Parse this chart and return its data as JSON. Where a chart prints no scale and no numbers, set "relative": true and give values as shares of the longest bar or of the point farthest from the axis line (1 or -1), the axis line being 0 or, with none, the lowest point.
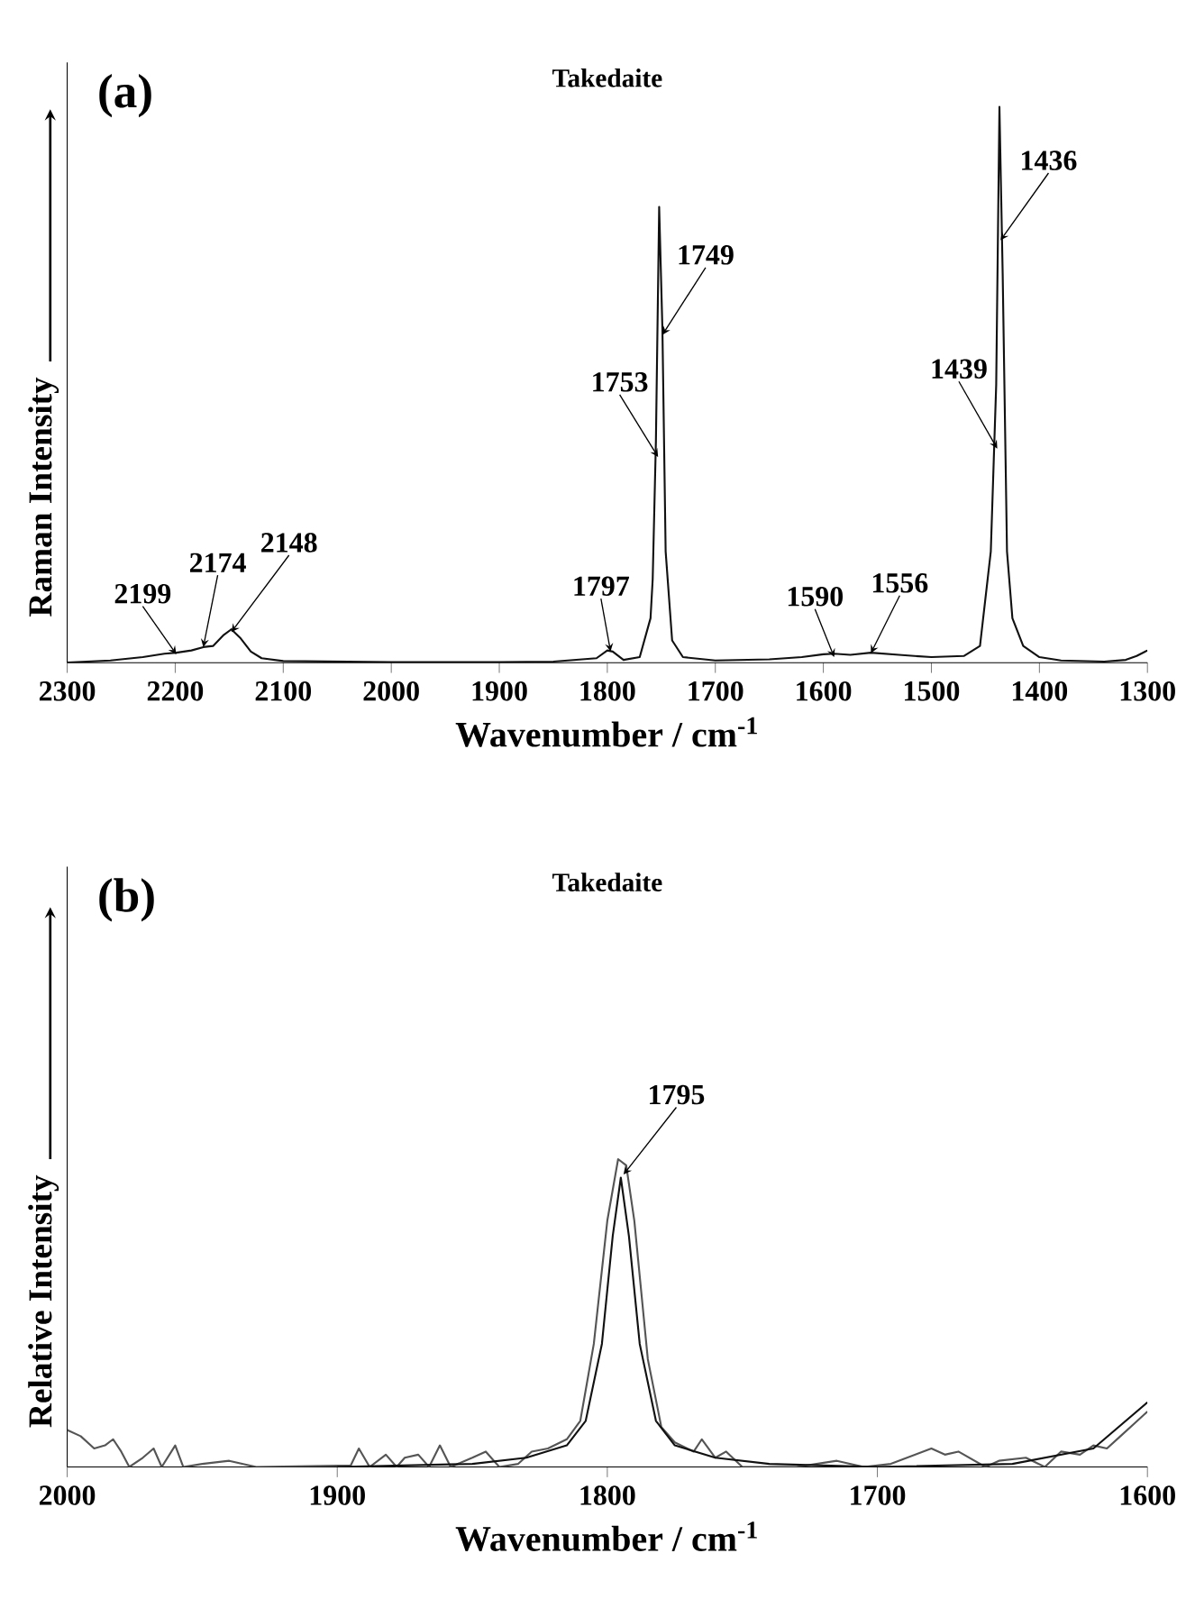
{
  "chart_data": [
    {
      "type": "line",
      "title": "Takedaite",
      "xlabel": "Wavenumber / cm$^{-1}$",
      "ylabel": "Raman Intensity",
      "relative": true,
      "marker": "none",
      "xlim": [
        2300,
        1300
      ],
      "xticks": [
        2300,
        2200,
        2100,
        2000,
        1900,
        1800,
        1700,
        1600,
        1500,
        1400,
        1300
      ],
      "series": [
        {
          "color": "#111111",
          "x": [
            2300,
            2260,
            2230,
            2210,
            2199,
            2185,
            2174,
            2165,
            2155,
            2148,
            2140,
            2130,
            2120,
            2100,
            2000,
            1900,
            1850,
            1810,
            1800,
            1795,
            1785,
            1770,
            1760,
            1758,
            1755,
            1752,
            1749,
            1746,
            1740,
            1730,
            1700,
            1650,
            1620,
            1600,
            1590,
            1575,
            1556,
            1530,
            1500,
            1470,
            1455,
            1445,
            1440,
            1437,
            1434,
            1430,
            1425,
            1415,
            1400,
            1380,
            1340,
            1320,
            1310,
            1300
          ],
          "values": [
            0,
            0.004,
            0.01,
            0.016,
            0.018,
            0.022,
            0.028,
            0.03,
            0.05,
            0.06,
            0.045,
            0.02,
            0.008,
            0.003,
            0.001,
            0.001,
            0.002,
            0.008,
            0.022,
            0.02,
            0.005,
            0.01,
            0.08,
            0.15,
            0.4,
            0.82,
            0.6,
            0.2,
            0.04,
            0.01,
            0.004,
            0.006,
            0.01,
            0.015,
            0.016,
            0.014,
            0.018,
            0.014,
            0.01,
            0.012,
            0.03,
            0.2,
            0.5,
            1.0,
            0.7,
            0.2,
            0.08,
            0.03,
            0.01,
            0.004,
            0.002,
            0.005,
            0.012,
            0.022
          ]
        }
      ],
      "annotations": [
        "(a)",
        {
          "text": "2199",
          "x": 2199,
          "y": 0.015
        },
        {
          "text": "2174",
          "x": 2174,
          "y": 0.028
        },
        {
          "text": "2148",
          "x": 2148,
          "y": 0.055
        },
        {
          "text": "1797",
          "x": 1797,
          "y": 0.02
        },
        {
          "text": "1753",
          "x": 1753,
          "y": 0.37
        },
        {
          "text": "1749",
          "x": 1749,
          "y": 0.59
        },
        {
          "text": "1590",
          "x": 1590,
          "y": 0.01
        },
        {
          "text": "1556",
          "x": 1556,
          "y": 0.017
        },
        {
          "text": "1439",
          "x": 1439,
          "y": 0.385
        },
        {
          "text": "1436",
          "x": 1436,
          "y": 0.76
        }
      ]
    },
    {
      "type": "line",
      "title": "Takedaite",
      "xlabel": "Wavenumber / cm$^{-1}$",
      "ylabel": "Relative Intensity",
      "relative": true,
      "marker": "none",
      "xlim": [
        2000,
        1600
      ],
      "xticks": [
        2000,
        1900,
        1800,
        1700,
        1600
      ],
      "series": [
        {
          "color": "#555555",
          "x": [
            2000,
            1995,
            1990,
            1986,
            1983,
            1980,
            1977,
            1972,
            1968,
            1965,
            1960,
            1957,
            1950,
            1940,
            1930,
            1895,
            1892,
            1888,
            1882,
            1878,
            1875,
            1870,
            1866,
            1862,
            1858,
            1850,
            1845,
            1840,
            1833,
            1828,
            1822,
            1815,
            1810,
            1805,
            1800,
            1796,
            1793,
            1790,
            1785,
            1780,
            1775,
            1768,
            1765,
            1760,
            1756,
            1750,
            1730,
            1715,
            1705,
            1695,
            1680,
            1675,
            1670,
            1660,
            1655,
            1645,
            1638,
            1632,
            1625,
            1620,
            1615,
            1610,
            1605,
            1600
          ],
          "values": [
            0.12,
            0.1,
            0.06,
            0.07,
            0.09,
            0.05,
            0.0,
            0.03,
            0.06,
            0.0,
            0.07,
            0.0,
            0.01,
            0.02,
            0.0,
            0.005,
            0.06,
            0.0,
            0.04,
            0.0,
            0.03,
            0.04,
            0.0,
            0.07,
            0.0,
            0.03,
            0.05,
            0.0,
            0.01,
            0.05,
            0.06,
            0.09,
            0.15,
            0.4,
            0.8,
            1.0,
            0.98,
            0.8,
            0.35,
            0.13,
            0.08,
            0.05,
            0.09,
            0.03,
            0.05,
            0.0,
            0.0,
            0.02,
            0.0,
            0.01,
            0.06,
            0.04,
            0.05,
            0.0,
            0.02,
            0.03,
            0.0,
            0.05,
            0.04,
            0.07,
            0.06,
            0.1,
            0.14,
            0.18
          ]
        },
        {
          "color": "#111111",
          "x": [
            1900,
            1850,
            1830,
            1815,
            1808,
            1802,
            1798,
            1795,
            1792,
            1788,
            1782,
            1775,
            1760,
            1740,
            1700,
            1650,
            1620,
            1600
          ],
          "values": [
            0.0,
            0.01,
            0.03,
            0.07,
            0.15,
            0.4,
            0.75,
            0.94,
            0.75,
            0.4,
            0.15,
            0.07,
            0.03,
            0.01,
            0.0,
            0.01,
            0.06,
            0.21
          ]
        }
      ],
      "annotations": [
        "(b)",
        {
          "text": "1795",
          "x": 1794,
          "y": 0.95
        }
      ]
    }
  ]
}
